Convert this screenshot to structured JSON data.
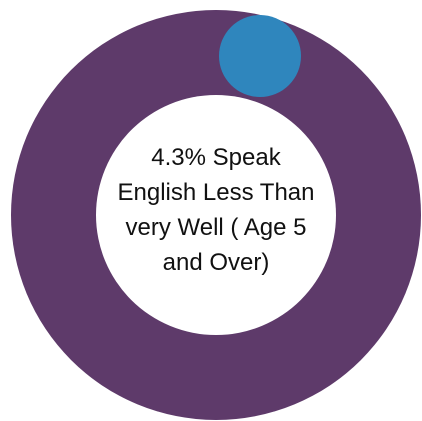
{
  "chart_data": {
    "type": "pie",
    "variant": "donut",
    "center_text": "4.3% Speak English Less Than very Well ( Age 5 and Over)",
    "slices": [
      {
        "value": 95.7,
        "color": "#5e3a6a"
      },
      {
        "value": 4.3,
        "color": "#2f86bd"
      }
    ],
    "highlight_percent": 4.3
  },
  "colors": {
    "ring": "#5e3a6a",
    "accent": "#2f86bd",
    "center": "#ffffff"
  }
}
